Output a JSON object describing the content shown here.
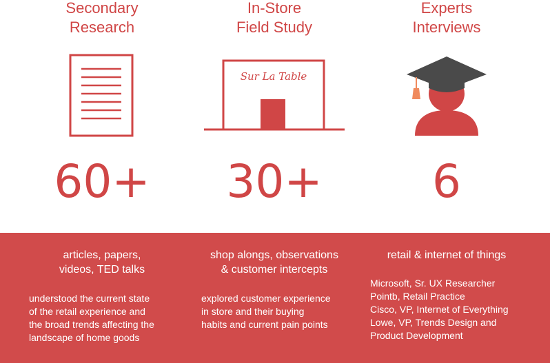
{
  "columns": [
    {
      "title": "Secondary\nResearch",
      "icon": "document-icon",
      "count": "60+",
      "subtitle": "articles, papers,\nvideos, TED talks",
      "description": "understood the current state\nof the retail experience and\nthe broad trends affecting the\nlandscape of home goods"
    },
    {
      "title": "In-Store\nField Study",
      "icon": "storefront-icon",
      "store_sign": "Sur La Table",
      "count": "30+",
      "subtitle": "shop alongs, observations\n& customer intercepts",
      "description": "explored customer experience\nin store and their buying\nhabits and current pain points"
    },
    {
      "title": "Experts\nInterviews",
      "icon": "graduate-icon",
      "count": "6",
      "subtitle": "retail & internet of things",
      "description": "Microsoft, Sr. UX Researcher\nPointb, Retail Practice\nCisco, VP, Internet of Everything\nLowe, VP, Trends Design and\nProduct Development"
    }
  ],
  "colors": {
    "accent": "#d04646",
    "band": "#d14b4b",
    "cap": "#4a4a4a",
    "tassel": "#f08a5d"
  }
}
